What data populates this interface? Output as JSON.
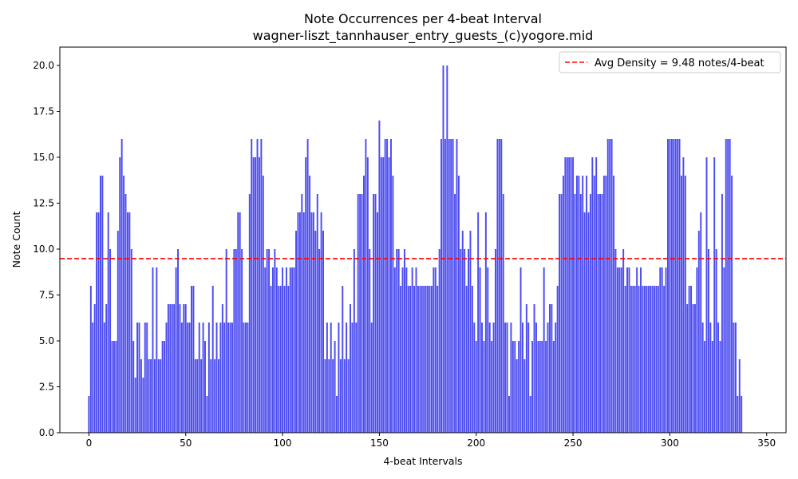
{
  "chart_data": {
    "type": "bar",
    "title_line1": "Note Occurrences per 4-beat Interval",
    "title_line2": "wagner-liszt_tannhauser_entry_guests_(c)yogore.mid",
    "xlabel": "4-beat Intervals",
    "ylabel": "Note Count",
    "xlim": [
      -15,
      360
    ],
    "ylim": [
      0,
      21
    ],
    "xticks": [
      0,
      50,
      100,
      150,
      200,
      250,
      300,
      350
    ],
    "xtick_labels": [
      "0",
      "50",
      "100",
      "150",
      "200",
      "250",
      "300",
      "350"
    ],
    "yticks": [
      0,
      2.5,
      5,
      7.5,
      10,
      12.5,
      15,
      17.5,
      20
    ],
    "ytick_labels": [
      "0.0",
      "2.5",
      "5.0",
      "7.5",
      "10.0",
      "12.5",
      "15.0",
      "17.5",
      "20.0"
    ],
    "bar_color": "#4b4bf0",
    "average": 9.48,
    "average_color": "#ff0000",
    "legend_label": "Avg Density = 9.48 notes/4-beat",
    "legend_position": "top-right",
    "grid": false,
    "values": [
      2,
      8,
      6,
      7,
      12,
      12,
      14,
      14,
      6,
      7,
      12,
      10,
      5,
      5,
      5,
      11,
      15,
      16,
      14,
      13,
      12,
      12,
      10,
      5,
      3,
      6,
      6,
      4,
      3,
      6,
      6,
      4,
      4,
      9,
      4,
      9,
      4,
      4,
      5,
      5,
      6,
      7,
      7,
      7,
      7,
      9,
      10,
      7,
      6,
      7,
      7,
      6,
      6,
      8,
      8,
      4,
      4,
      6,
      4,
      6,
      5,
      2,
      6,
      4,
      8,
      4,
      6,
      4,
      6,
      7,
      6,
      10,
      6,
      6,
      6,
      10,
      10,
      12,
      12,
      10,
      6,
      6,
      6,
      13,
      16,
      15,
      15,
      16,
      15,
      16,
      14,
      9,
      10,
      10,
      8,
      9,
      10,
      9,
      8,
      8,
      9,
      8,
      9,
      8,
      9,
      9,
      9,
      11,
      12,
      12,
      13,
      12,
      15,
      16,
      14,
      12,
      12,
      11,
      13,
      10,
      12,
      11,
      4,
      6,
      4,
      6,
      4,
      5,
      2,
      6,
      4,
      8,
      4,
      6,
      4,
      7,
      6,
      10,
      6,
      13,
      13,
      13,
      14,
      16,
      15,
      10,
      6,
      13,
      13,
      12,
      17,
      15,
      15,
      16,
      16,
      15,
      16,
      14,
      9,
      10,
      10,
      8,
      9,
      10,
      9,
      8,
      8,
      9,
      8,
      9,
      8,
      8,
      8,
      8,
      8,
      8,
      8,
      8,
      9,
      9,
      8,
      10,
      16,
      20,
      16,
      20,
      16,
      16,
      16,
      13,
      16,
      14,
      10,
      11,
      10,
      8,
      10,
      11,
      8,
      6,
      5,
      12,
      9,
      6,
      5,
      12,
      9,
      6,
      5,
      6,
      10,
      16,
      16,
      16,
      13,
      6,
      6,
      2,
      6,
      5,
      5,
      4,
      5,
      9,
      6,
      4,
      7,
      6,
      2,
      5,
      7,
      6,
      5,
      5,
      5,
      9,
      5,
      6,
      7,
      7,
      5,
      6,
      8,
      13,
      13,
      14,
      15,
      15,
      15,
      15,
      15,
      13,
      14,
      14,
      13,
      14,
      12,
      14,
      12,
      13,
      15,
      14,
      15,
      13,
      13,
      13,
      14,
      14,
      16,
      16,
      16,
      14,
      10,
      9,
      9,
      9,
      10,
      8,
      9,
      9,
      8,
      8,
      8,
      9,
      8,
      9,
      8,
      8,
      8,
      8,
      8,
      8,
      8,
      8,
      8,
      9,
      9,
      8,
      9,
      16,
      16,
      16,
      16,
      16,
      16,
      16,
      14,
      15,
      14,
      7,
      8,
      8,
      7,
      7,
      9,
      11,
      12,
      6,
      5,
      15,
      10,
      6,
      5,
      15,
      10,
      6,
      5,
      13,
      9,
      16,
      16,
      16,
      14,
      6,
      6,
      2,
      4,
      2
    ]
  }
}
